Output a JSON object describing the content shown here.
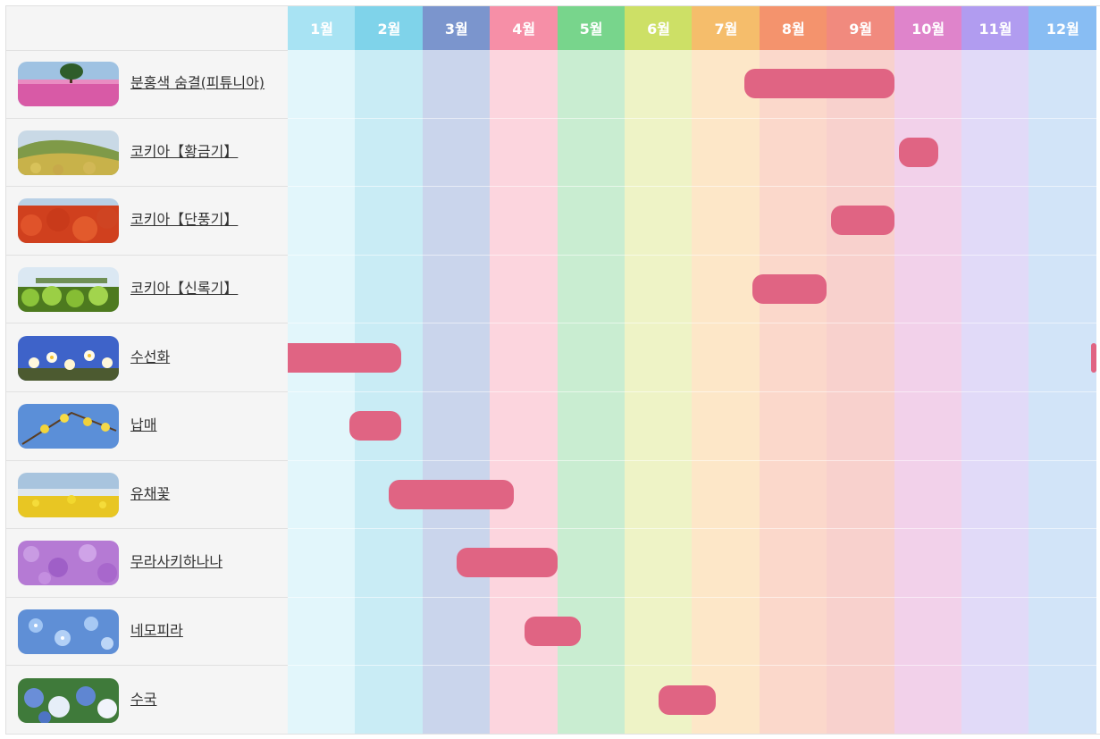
{
  "months": [
    {
      "label": "1월",
      "head_color": "#a8e3f3",
      "body_color": "#e2f6fb"
    },
    {
      "label": "2월",
      "head_color": "#7fd3ea",
      "body_color": "#c9ecf5"
    },
    {
      "label": "3월",
      "head_color": "#7b95cd",
      "body_color": "#cad5ec"
    },
    {
      "label": "4월",
      "head_color": "#f68fa7",
      "body_color": "#fcd5de"
    },
    {
      "label": "5월",
      "head_color": "#78d58c",
      "body_color": "#c9edd1"
    },
    {
      "label": "6월",
      "head_color": "#cde066",
      "body_color": "#eef3c6"
    },
    {
      "label": "7월",
      "head_color": "#f5bd6b",
      "body_color": "#fde7c8"
    },
    {
      "label": "8월",
      "head_color": "#f4936d",
      "body_color": "#fbd8cb"
    },
    {
      "label": "9월",
      "head_color": "#f18a7e",
      "body_color": "#f8d1cd"
    },
    {
      "label": "10월",
      "head_color": "#df84cb",
      "body_color": "#f2d1ea"
    },
    {
      "label": "11월",
      "head_color": "#b19cf0",
      "body_color": "#e1daf8"
    },
    {
      "label": "12월",
      "head_color": "#88bdf3",
      "body_color": "#d2e4f8"
    }
  ],
  "bar_color": "#e06483",
  "flowers": [
    {
      "name": "분홍색 숨결(피튜니아)",
      "thumb": "pink-field-with-tree",
      "bloom": [
        {
          "start": 6.78,
          "end": 9.0
        }
      ]
    },
    {
      "name": "코키아【황금기】",
      "thumb": "golden-kochia-hill",
      "bloom": [
        {
          "start": 9.07,
          "end": 9.65
        }
      ]
    },
    {
      "name": "코키아【단풍기】",
      "thumb": "red-kochia",
      "bloom": [
        {
          "start": 8.07,
          "end": 9.0
        }
      ]
    },
    {
      "name": "코키아【신록기】",
      "thumb": "green-kochia",
      "bloom": [
        {
          "start": 6.9,
          "end": 8.0
        }
      ]
    },
    {
      "name": "수선화",
      "thumb": "daffodils-blue-sky",
      "bloom": [
        {
          "start": 0.0,
          "end": 1.68
        },
        {
          "start": 11.92,
          "end": 12.0
        }
      ]
    },
    {
      "name": "납매",
      "thumb": "wintersweet",
      "bloom": [
        {
          "start": 0.92,
          "end": 1.68
        }
      ]
    },
    {
      "name": "유채꽃",
      "thumb": "canola-field",
      "bloom": [
        {
          "start": 1.5,
          "end": 3.36
        }
      ]
    },
    {
      "name": "무라사키하나나",
      "thumb": "purple-flowers",
      "bloom": [
        {
          "start": 2.51,
          "end": 4.0
        }
      ]
    },
    {
      "name": "네모피라",
      "thumb": "nemophila",
      "bloom": [
        {
          "start": 3.51,
          "end": 4.35
        }
      ]
    },
    {
      "name": "수국",
      "thumb": "hydrangea",
      "bloom": [
        {
          "start": 5.5,
          "end": 6.35
        }
      ]
    }
  ]
}
